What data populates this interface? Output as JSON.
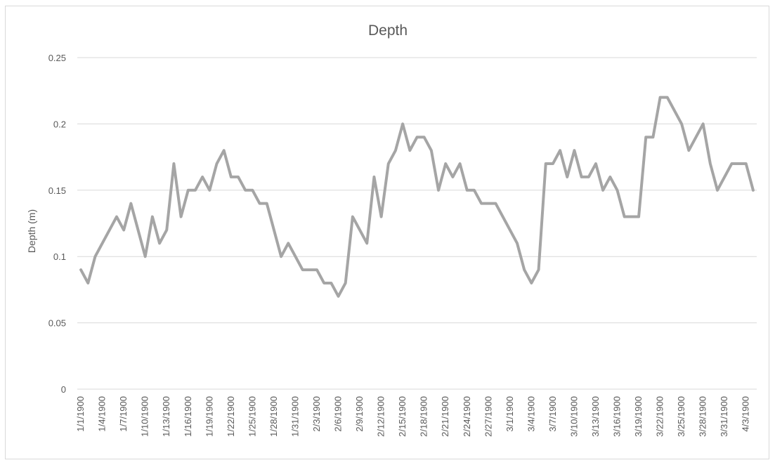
{
  "chart_data": {
    "type": "line",
    "title": "Depth",
    "xlabel": "",
    "ylabel": "Depth (m)",
    "ylim": [
      0,
      0.25
    ],
    "y_ticks": [
      "0",
      "0.05",
      "0.1",
      "0.15",
      "0.2",
      "0.25"
    ],
    "grid": true,
    "legend": "none",
    "line_color": "#a5a5a5",
    "x_ticks": [
      "1/1/1900",
      "1/4/1900",
      "1/7/1900",
      "1/10/1900",
      "1/13/1900",
      "1/16/1900",
      "1/19/1900",
      "1/22/1900",
      "1/25/1900",
      "1/28/1900",
      "1/31/1900",
      "2/3/1900",
      "2/6/1900",
      "2/9/1900",
      "2/12/1900",
      "2/15/1900",
      "2/18/1900",
      "2/21/1900",
      "2/24/1900",
      "2/27/1900",
      "3/1/1900",
      "3/4/1900",
      "3/7/1900",
      "3/10/1900",
      "3/13/1900",
      "3/16/1900",
      "3/19/1900",
      "3/22/1900",
      "3/25/1900",
      "3/28/1900",
      "3/31/1900",
      "4/3/1900"
    ],
    "series": [
      {
        "values": [
          0.09,
          0.08,
          0.1,
          0.11,
          0.12,
          0.13,
          0.12,
          0.14,
          0.12,
          0.1,
          0.13,
          0.11,
          0.12,
          0.17,
          0.13,
          0.15,
          0.15,
          0.16,
          0.15,
          0.17,
          0.18,
          0.16,
          0.16,
          0.15,
          0.15,
          0.14,
          0.14,
          0.12,
          0.1,
          0.11,
          0.1,
          0.09,
          0.09,
          0.09,
          0.08,
          0.08,
          0.07,
          0.08,
          0.13,
          0.12,
          0.11,
          0.16,
          0.13,
          0.17,
          0.18,
          0.2,
          0.18,
          0.19,
          0.19,
          0.18,
          0.15,
          0.17,
          0.16,
          0.17,
          0.15,
          0.15,
          0.14,
          0.14,
          0.14,
          0.13,
          0.12,
          0.11,
          0.09,
          0.08,
          0.09,
          0.17,
          0.17,
          0.18,
          0.16,
          0.18,
          0.16,
          0.16,
          0.17,
          0.15,
          0.16,
          0.15,
          0.13,
          0.13,
          0.13,
          0.19,
          0.19,
          0.22,
          0.22,
          0.21,
          0.2,
          0.18,
          0.19,
          0.2,
          0.17,
          0.15,
          0.16,
          0.17,
          0.17,
          0.17,
          0.15
        ]
      }
    ]
  }
}
